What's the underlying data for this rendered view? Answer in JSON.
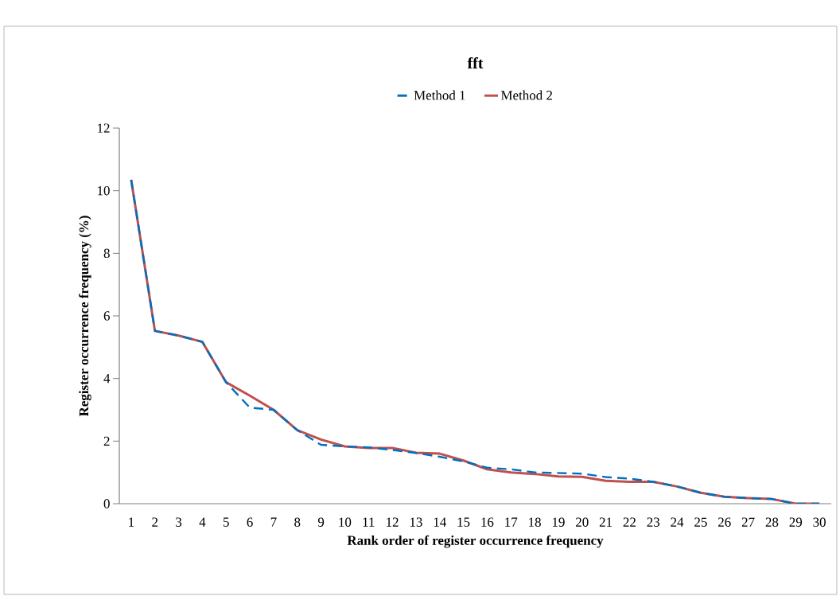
{
  "chart_data": {
    "type": "line",
    "title": "fft",
    "xlabel": "Rank order of register occurrence frequency",
    "ylabel": "Register occurrence frequency (%)",
    "categories": [
      "1",
      "2",
      "3",
      "4",
      "5",
      "6",
      "7",
      "8",
      "9",
      "10",
      "11",
      "12",
      "13",
      "14",
      "15",
      "16",
      "17",
      "18",
      "19",
      "20",
      "21",
      "22",
      "23",
      "24",
      "25",
      "26",
      "27",
      "28",
      "29",
      "30"
    ],
    "ylim": [
      0,
      12
    ],
    "yticks": [
      0,
      2,
      4,
      6,
      8,
      10,
      12
    ],
    "legend": "top",
    "grid": false,
    "marker": "none",
    "series": [
      {
        "name": "Method 1",
        "color": "#0070c0",
        "line_style": "dashed",
        "values": [
          10.35,
          5.52,
          5.37,
          5.17,
          3.88,
          3.07,
          3.0,
          2.35,
          1.88,
          1.83,
          1.8,
          1.72,
          1.62,
          1.5,
          1.35,
          1.15,
          1.1,
          1.0,
          0.98,
          0.96,
          0.85,
          0.8,
          0.7,
          0.55,
          0.35,
          0.22,
          0.18,
          0.15,
          0.0,
          0.0
        ]
      },
      {
        "name": "Method 2",
        "color": "#c0504d",
        "line_style": "solid",
        "values": [
          10.35,
          5.52,
          5.37,
          5.17,
          3.88,
          3.45,
          3.0,
          2.35,
          2.05,
          1.83,
          1.78,
          1.78,
          1.63,
          1.6,
          1.38,
          1.1,
          1.0,
          0.95,
          0.87,
          0.86,
          0.73,
          0.7,
          0.7,
          0.55,
          0.35,
          0.22,
          0.18,
          0.15,
          0.0,
          0.0
        ]
      }
    ]
  }
}
